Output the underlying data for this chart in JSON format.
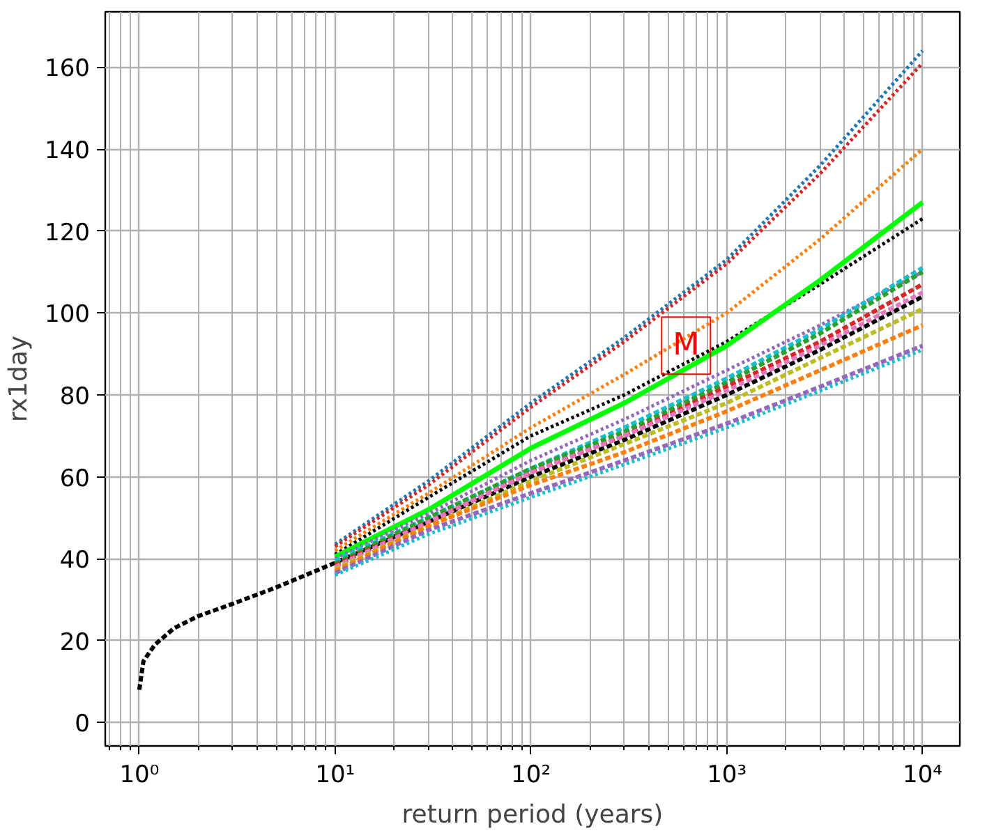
{
  "chart_data": {
    "type": "line",
    "xlabel": "return period (years)",
    "ylabel": "rx1day",
    "log": "x",
    "grid": true,
    "x": [
      1.0,
      1.05,
      1.2,
      1.5,
      2,
      3,
      5,
      10,
      30,
      100,
      300,
      1000,
      3000,
      10000
    ],
    "xlim": [
      0.67,
      15500
    ],
    "ylim": [
      -5.7,
      173.5
    ],
    "xticks": [
      {
        "value": 1,
        "label": "10⁰"
      },
      {
        "value": 10,
        "label": "10¹"
      },
      {
        "value": 100,
        "label": "10²"
      },
      {
        "value": 1000,
        "label": "10³"
      },
      {
        "value": 10000,
        "label": "10⁴"
      }
    ],
    "yticks": [
      0,
      20,
      40,
      60,
      80,
      100,
      120,
      140,
      160
    ],
    "annotations": [
      {
        "text": "M",
        "x": 620,
        "y": 92
      }
    ],
    "series": [
      {
        "color": "#000000",
        "line_style": "dashed",
        "values": [
          8,
          15,
          19,
          23,
          26,
          29,
          33,
          39,
          49,
          60,
          69,
          80,
          91,
          104
        ]
      },
      {
        "color": "#1f77b4",
        "line_style": "dotted",
        "values": [
          null,
          null,
          null,
          null,
          null,
          null,
          null,
          43.5,
          59,
          78,
          94,
          113,
          136,
          164
        ]
      },
      {
        "color": "#d62728",
        "line_style": "dotted",
        "values": [
          null,
          null,
          null,
          null,
          null,
          null,
          null,
          43,
          58,
          77,
          93,
          112,
          134,
          161
        ]
      },
      {
        "color": "#ff7f0e",
        "line_style": "dotted",
        "values": [
          null,
          null,
          null,
          null,
          null,
          null,
          null,
          42,
          56,
          72,
          85,
          100,
          118,
          140
        ]
      },
      {
        "color": "#000000",
        "line_style": "dotted",
        "values": [
          null,
          null,
          null,
          null,
          null,
          null,
          null,
          41,
          55,
          70,
          80,
          93,
          107,
          123
        ]
      },
      {
        "color": "#00ff00",
        "line_style": "solid",
        "values": [
          null,
          null,
          null,
          null,
          null,
          null,
          null,
          40.5,
          52,
          67,
          78,
          92,
          108,
          127
        ]
      },
      {
        "color": "#9467bd",
        "line_style": "dotted",
        "values": [
          null,
          null,
          null,
          null,
          null,
          null,
          null,
          40,
          51,
          64,
          74,
          86,
          97,
          110
        ]
      },
      {
        "color": "#17becf",
        "line_style": "dashed",
        "values": [
          null,
          null,
          null,
          null,
          null,
          null,
          null,
          39.5,
          50,
          62,
          72,
          84,
          96,
          111
        ]
      },
      {
        "color": "#2ca02c",
        "line_style": "dashed",
        "values": [
          null,
          null,
          null,
          null,
          null,
          null,
          null,
          38.8,
          50,
          62,
          71,
          83,
          95,
          110
        ]
      },
      {
        "color": "#d62728",
        "line_style": "dashed",
        "values": [
          null,
          null,
          null,
          null,
          null,
          null,
          null,
          38.4,
          49,
          61,
          70,
          82,
          93,
          107
        ]
      },
      {
        "color": "#e377c2",
        "line_style": "dashed",
        "values": [
          null,
          null,
          null,
          null,
          null,
          null,
          null,
          38,
          49,
          61,
          70,
          81,
          92,
          105
        ]
      },
      {
        "color": "#bcbd22",
        "line_style": "dashed",
        "values": [
          null,
          null,
          null,
          null,
          null,
          null,
          null,
          37.5,
          48,
          59,
          68,
          78,
          89,
          101
        ]
      },
      {
        "color": "#ff7f0e",
        "line_style": "dashed",
        "values": [
          null,
          null,
          null,
          null,
          null,
          null,
          null,
          37,
          48,
          58,
          66,
          76,
          86,
          97
        ]
      },
      {
        "color": "#9467bd",
        "line_style": "dashed",
        "values": [
          null,
          null,
          null,
          null,
          null,
          null,
          null,
          36.5,
          47,
          56,
          64,
          73,
          82,
          92
        ]
      },
      {
        "color": "#17becf",
        "line_style": "dotted",
        "values": [
          null,
          null,
          null,
          null,
          null,
          null,
          null,
          36,
          46,
          55,
          63,
          72,
          81,
          91
        ]
      }
    ]
  }
}
